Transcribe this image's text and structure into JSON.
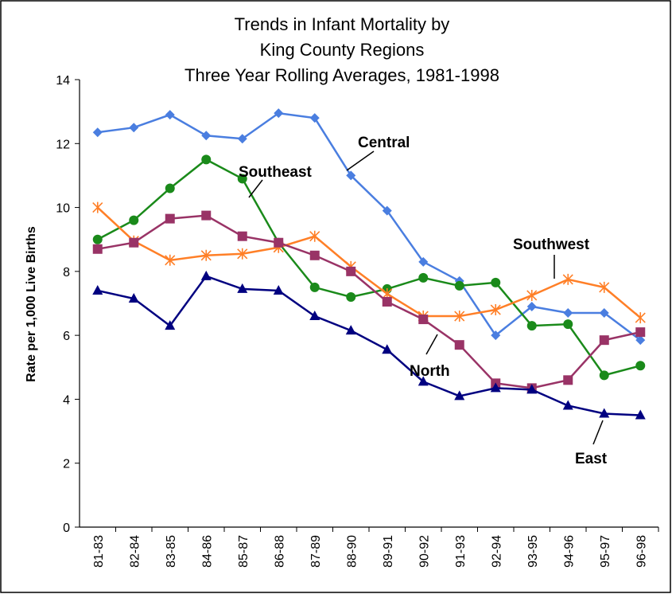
{
  "chart_data": {
    "type": "line",
    "title": [
      "Trends in Infant Mortality by",
      "King County Regions"
    ],
    "subtitle": "Three Year Rolling Averages, 1981-1998",
    "ylabel": "Rate per 1,000 Live Births",
    "categories": [
      "81-83",
      "82-84",
      "83-85",
      "84-86",
      "85-87",
      "86-88",
      "87-89",
      "88-90",
      "89-91",
      "90-92",
      "91-93",
      "92-94",
      "93-95",
      "94-96",
      "95-97",
      "96-98"
    ],
    "ylim": [
      0,
      14
    ],
    "yticks": [
      0,
      2,
      4,
      6,
      8,
      10,
      12,
      14
    ],
    "grid": false,
    "series": [
      {
        "name": "Central",
        "color": "#4a7ee0",
        "marker": "diamond",
        "values": [
          12.35,
          12.5,
          12.9,
          12.25,
          12.15,
          12.95,
          12.8,
          11.0,
          9.9,
          8.3,
          7.7,
          6.0,
          6.9,
          6.7,
          6.7,
          5.85
        ]
      },
      {
        "name": "Southeast",
        "color": "#1a8a1a",
        "marker": "circle",
        "values": [
          9.0,
          9.6,
          10.6,
          11.5,
          10.9,
          8.9,
          7.5,
          7.2,
          7.45,
          7.8,
          7.55,
          7.65,
          6.3,
          6.35,
          4.75,
          5.05
        ]
      },
      {
        "name": "Southwest",
        "color": "#ff7f27",
        "marker": "star",
        "values": [
          10.0,
          8.95,
          8.35,
          8.5,
          8.55,
          8.75,
          9.1,
          8.15,
          7.3,
          6.6,
          6.6,
          6.8,
          7.25,
          7.75,
          7.5,
          6.55
        ]
      },
      {
        "name": "North",
        "color": "#993366",
        "marker": "square",
        "values": [
          8.7,
          8.9,
          9.65,
          9.75,
          9.1,
          8.9,
          8.5,
          8.0,
          7.05,
          6.5,
          5.7,
          4.5,
          4.35,
          4.6,
          5.85,
          6.1
        ]
      },
      {
        "name": "East",
        "color": "#000080",
        "marker": "triangle",
        "values": [
          7.4,
          7.15,
          6.3,
          7.85,
          7.45,
          7.4,
          6.6,
          6.15,
          5.55,
          4.55,
          4.1,
          4.35,
          4.3,
          3.8,
          3.55,
          3.5
        ]
      }
    ]
  }
}
